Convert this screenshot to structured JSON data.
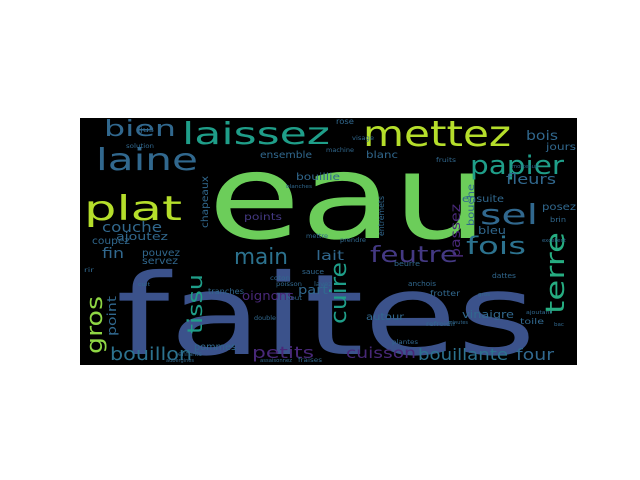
{
  "palette": {
    "background": "#000000",
    "green": "#6ccd5a",
    "lime": "#b5de2b",
    "yellowgreen": "#8fd744",
    "teal": "#1f9e89",
    "turquoise": "#26ad81",
    "blue": "#3e4a89",
    "slate": "#3b528b",
    "steel": "#31688e",
    "cerulean": "#2c728e",
    "cyan": "#35b779",
    "purple": "#482878",
    "violet": "#443983",
    "indigo": "#472d7b"
  },
  "words": [
    {
      "id": "eau",
      "text": "eau",
      "color": "green",
      "size": 118
    },
    {
      "id": "faites",
      "text": "faites",
      "color": "slate",
      "size": 112
    },
    {
      "id": "mettez",
      "text": "mettez",
      "color": "lime",
      "size": 36
    },
    {
      "id": "laissez",
      "text": "laissez",
      "color": "teal",
      "size": 30
    },
    {
      "id": "laine",
      "text": "laine",
      "color": "steel",
      "size": 30
    },
    {
      "id": "bien",
      "text": "bien",
      "color": "steel",
      "size": 22
    },
    {
      "id": "plat",
      "text": "plat",
      "color": "lime",
      "size": 34
    },
    {
      "id": "papier",
      "text": "papier",
      "color": "teal",
      "size": 26
    },
    {
      "id": "sel",
      "text": "sel",
      "color": "steel",
      "size": 28
    },
    {
      "id": "puree",
      "text": "purée",
      "color": "turquoise",
      "size": 24
    },
    {
      "id": "main",
      "text": "main",
      "color": "cerulean",
      "size": 22
    },
    {
      "id": "feutre",
      "text": "feutre",
      "color": "violet",
      "size": 22
    },
    {
      "id": "fois",
      "text": "fois",
      "color": "cerulean",
      "size": 24
    },
    {
      "id": "terre",
      "text": "terre",
      "color": "turquoise",
      "size": 26
    },
    {
      "id": "cuire",
      "text": "cuire",
      "color": "teal",
      "size": 22
    },
    {
      "id": "gros",
      "text": "gros",
      "color": "yellowgreen",
      "size": 22
    },
    {
      "id": "tissu",
      "text": "tissu",
      "color": "teal",
      "size": 20
    },
    {
      "id": "bouillon",
      "text": "bouillon",
      "color": "cerulean",
      "size": 18
    },
    {
      "id": "petits",
      "text": "petits",
      "color": "purple",
      "size": 16
    },
    {
      "id": "bouillante",
      "text": "bouillante",
      "color": "cerulean",
      "size": 16
    },
    {
      "id": "four",
      "text": "four",
      "color": "steel",
      "size": 16
    },
    {
      "id": "cuisson",
      "text": "cuisson",
      "color": "purple",
      "size": 15
    },
    {
      "id": "legumes",
      "text": "légumes",
      "color": "teal",
      "size": 13
    },
    {
      "id": "fleurs",
      "text": "fleurs",
      "color": "steel",
      "size": 14
    },
    {
      "id": "couche",
      "text": "couche",
      "color": "steel",
      "size": 14
    },
    {
      "id": "bois",
      "text": "bois",
      "color": "steel",
      "size": 13
    },
    {
      "id": "passez",
      "text": "passez",
      "color": "purple",
      "size": 13
    },
    {
      "id": "lait",
      "text": "lait",
      "color": "steel",
      "size": 13
    },
    {
      "id": "fin",
      "text": "fin",
      "color": "steel",
      "size": 14
    },
    {
      "id": "point",
      "text": "point",
      "color": "steel",
      "size": 12
    },
    {
      "id": "oignons",
      "text": "oignons",
      "color": "purple",
      "size": 12
    },
    {
      "id": "part",
      "text": "part",
      "color": "steel",
      "size": 12
    },
    {
      "id": "pate",
      "text": "pâte",
      "color": "steel",
      "size": 12
    },
    {
      "id": "vinaigre",
      "text": "vinaigre",
      "color": "steel",
      "size": 11
    },
    {
      "id": "ajoutez",
      "text": "ajoutez",
      "color": "steel",
      "size": 11
    },
    {
      "id": "ensemble",
      "text": "ensemble",
      "color": "steel",
      "size": 10
    },
    {
      "id": "bouillie",
      "text": "bouillie",
      "color": "steel",
      "size": 10
    },
    {
      "id": "chapeaux",
      "text": "chapeaux",
      "color": "steel",
      "size": 10
    },
    {
      "id": "points",
      "text": "points",
      "color": "violet",
      "size": 10
    },
    {
      "id": "blanc",
      "text": "blanc",
      "color": "steel",
      "size": 10
    },
    {
      "id": "ensuite",
      "text": "ensuite",
      "color": "steel",
      "size": 10
    },
    {
      "id": "bleu",
      "text": "bleu",
      "color": "steel",
      "size": 11
    },
    {
      "id": "coupez",
      "text": "coupez",
      "color": "steel",
      "size": 10
    },
    {
      "id": "pouvez",
      "text": "pouvez",
      "color": "steel",
      "size": 10
    },
    {
      "id": "servez",
      "text": "servez",
      "color": "steel",
      "size": 10
    },
    {
      "id": "autour",
      "text": "autour",
      "color": "steel",
      "size": 10
    },
    {
      "id": "pommes",
      "text": "pommes",
      "color": "steel",
      "size": 10
    },
    {
      "id": "cote",
      "text": "côté",
      "color": "steel",
      "size": 10
    },
    {
      "id": "bouche",
      "text": "bouche",
      "color": "steel",
      "size": 10
    },
    {
      "id": "posez",
      "text": "posez",
      "color": "steel",
      "size": 10
    },
    {
      "id": "secher",
      "text": "sécher",
      "color": "steel",
      "size": 9
    },
    {
      "id": "jours",
      "text": "jours",
      "color": "steel",
      "size": 10
    },
    {
      "id": "toile",
      "text": "toile",
      "color": "steel",
      "size": 8
    },
    {
      "id": "tranches",
      "text": "tranches",
      "color": "steel",
      "size": 8
    },
    {
      "id": "frotter",
      "text": "frotter",
      "color": "steel",
      "size": 8
    },
    {
      "id": "entremets",
      "text": "entremets",
      "color": "steel",
      "size": 8
    },
    {
      "id": "cuillerees",
      "text": "cuillerées",
      "color": "steel",
      "size": 7
    },
    {
      "id": "anchois",
      "text": "anchois",
      "color": "steel",
      "size": 7
    },
    {
      "id": "beurre",
      "text": "beurre",
      "color": "steel",
      "size": 7
    },
    {
      "id": "sauce",
      "text": "sauce",
      "color": "steel",
      "size": 7
    },
    {
      "id": "dattes",
      "text": "dattes",
      "color": "steel",
      "size": 7
    },
    {
      "id": "filee",
      "text": "filée",
      "color": "steel",
      "size": 6
    },
    {
      "id": "refroidir",
      "text": "refroidir",
      "color": "steel",
      "size": 6
    },
    {
      "id": "coton",
      "text": "coton",
      "color": "steel",
      "size": 6
    },
    {
      "id": "poisson",
      "text": "poisson",
      "color": "steel",
      "size": 6
    },
    {
      "id": "plantes",
      "text": "plantes",
      "color": "steel",
      "size": 6
    },
    {
      "id": "fraises",
      "text": "fraises",
      "color": "steel",
      "size": 6
    },
    {
      "id": "rose",
      "text": "rose",
      "color": "steel",
      "size": 8
    },
    {
      "id": "visage",
      "text": "visage",
      "color": "steel",
      "size": 6
    },
    {
      "id": "machine",
      "text": "machine",
      "color": "steel",
      "size": 6
    },
    {
      "id": "brin",
      "text": "brin",
      "color": "steel",
      "size": 7
    },
    {
      "id": "bout",
      "text": "bout",
      "color": "steel",
      "size": 6
    },
    {
      "id": "double",
      "text": "double",
      "color": "steel",
      "size": 6
    },
    {
      "id": "lavez",
      "text": "lavez",
      "color": "steel",
      "size": 6
    },
    {
      "id": "prendre",
      "text": "prendre",
      "color": "steel",
      "size": 6
    },
    {
      "id": "mettre",
      "text": "mettre",
      "color": "steel",
      "size": 6
    },
    {
      "id": "fruits",
      "text": "fruits",
      "color": "steel",
      "size": 6
    },
    {
      "id": "carre",
      "text": "carré",
      "color": "steel",
      "size": 6
    },
    {
      "id": "enfants",
      "text": "enfants",
      "color": "steel",
      "size": 6
    },
    {
      "id": "solution",
      "text": "solution",
      "color": "steel",
      "size": 6
    },
    {
      "id": "jus",
      "text": "jus",
      "color": "steel",
      "size": 7
    },
    {
      "id": "blanches",
      "text": "blanches",
      "color": "steel",
      "size": 5
    },
    {
      "id": "morceaux",
      "text": "morceaux",
      "color": "steel",
      "size": 5
    },
    {
      "id": "ajoutant",
      "text": "ajoutant",
      "color": "steel",
      "size": 5
    },
    {
      "id": "cuit",
      "text": "cuit",
      "color": "steel",
      "size": 5
    },
    {
      "id": "rir",
      "text": "rir",
      "color": "steel",
      "size": 6
    },
    {
      "id": "excellent",
      "text": "excellent",
      "color": "steel",
      "size": 5
    },
    {
      "id": "cable",
      "text": "câble",
      "color": "steel",
      "size": 5
    },
    {
      "id": "gros2",
      "text": "gros",
      "color": "steel",
      "size": 5
    },
    {
      "id": "aubergines",
      "text": "aubergines",
      "color": "steel",
      "size": 5
    },
    {
      "id": "assaisonnez",
      "text": "assaisonnez",
      "color": "steel",
      "size": 5
    },
    {
      "id": "minutes",
      "text": "minutes",
      "color": "steel",
      "size": 5
    },
    {
      "id": "bac",
      "text": "bac",
      "color": "steel",
      "size": 5
    }
  ]
}
